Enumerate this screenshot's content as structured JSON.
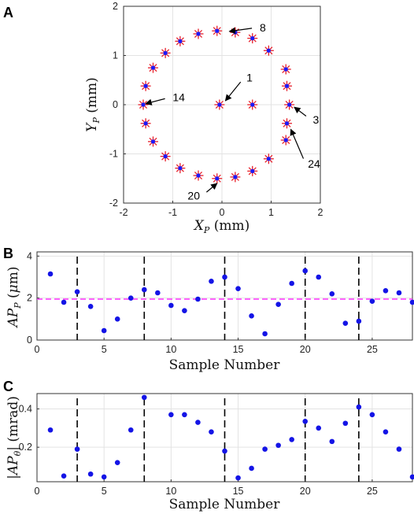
{
  "chart_data": [
    {
      "panel": "A",
      "type": "scatter",
      "xlabel": "X_P (mm)",
      "ylabel": "Y_P (mm)",
      "xlim": [
        -2,
        2
      ],
      "ylim": [
        -2,
        2
      ],
      "xticks": [
        "-2",
        "-1",
        "0",
        "1",
        "2"
      ],
      "yticks": [
        "-2",
        "-1",
        "0",
        "1",
        "2"
      ],
      "grid": true,
      "marker_red": "#e8202a",
      "marker_blue": "#1a1aff",
      "points": [
        {
          "x": -0.05,
          "y": 0
        },
        {
          "x": 0.62,
          "y": 0
        },
        {
          "x": 1.37,
          "y": 0
        },
        {
          "x": 1.3,
          "y": 0.72
        },
        {
          "x": 0.95,
          "y": 1.1
        },
        {
          "x": 0.62,
          "y": 1.35
        },
        {
          "x": 0.27,
          "y": 1.47
        },
        {
          "x": -0.1,
          "y": 1.5
        },
        {
          "x": -0.48,
          "y": 1.44
        },
        {
          "x": -0.85,
          "y": 1.29
        },
        {
          "x": -1.15,
          "y": 1.05
        },
        {
          "x": -1.4,
          "y": 0.75
        },
        {
          "x": -1.55,
          "y": 0.38
        },
        {
          "x": -1.6,
          "y": 0
        },
        {
          "x": -1.55,
          "y": -0.38
        },
        {
          "x": -1.4,
          "y": -0.75
        },
        {
          "x": -1.15,
          "y": -1.05
        },
        {
          "x": -0.85,
          "y": -1.29
        },
        {
          "x": -0.48,
          "y": -1.44
        },
        {
          "x": -0.1,
          "y": -1.5
        },
        {
          "x": 0.27,
          "y": -1.47
        },
        {
          "x": 0.62,
          "y": -1.35
        },
        {
          "x": 0.95,
          "y": -1.1
        },
        {
          "x": 1.3,
          "y": -0.72
        },
        {
          "x": 1.32,
          "y": 0.38
        },
        {
          "x": 1.32,
          "y": -0.38
        }
      ],
      "annotations": [
        {
          "text": "1",
          "x": 0.45,
          "y": 0.55,
          "tx": 0.07,
          "ty": 0.08
        },
        {
          "text": "8",
          "x": 0.72,
          "y": 1.57,
          "tx": 0.15,
          "ty": 1.49
        },
        {
          "text": "14",
          "x": -1.05,
          "y": 0.15,
          "tx": -1.55,
          "ty": 0.02
        },
        {
          "text": "3",
          "x": 1.8,
          "y": -0.3,
          "tx": 1.47,
          "ty": -0.05
        },
        {
          "text": "24",
          "x": 1.7,
          "y": -1.2,
          "tx": 1.4,
          "ty": -0.5
        },
        {
          "text": "20",
          "x": -0.4,
          "y": -1.85,
          "tx": -0.1,
          "ty": -1.6
        }
      ]
    },
    {
      "panel": "B",
      "type": "scatter",
      "xlabel": "Sample Number",
      "ylabel": "AP_P (μm)",
      "xlim": [
        0,
        28
      ],
      "ylim": [
        0,
        4.2
      ],
      "xticks": [
        "0",
        "5",
        "10",
        "15",
        "20",
        "25"
      ],
      "yticks": [
        "0",
        "2",
        "4"
      ],
      "grid": true,
      "x": [
        1,
        2,
        3,
        4,
        5,
        6,
        7,
        8,
        9,
        10,
        11,
        12,
        13,
        14,
        15,
        16,
        17,
        18,
        19,
        20,
        21,
        22,
        23,
        24,
        25,
        26,
        27,
        28
      ],
      "y": [
        3.15,
        1.8,
        2.3,
        1.6,
        0.45,
        1.0,
        2.0,
        2.4,
        2.25,
        1.65,
        1.4,
        1.95,
        2.8,
        3.0,
        2.45,
        1.15,
        0.3,
        1.7,
        2.7,
        3.3,
        3.0,
        2.2,
        0.8,
        0.9,
        1.85,
        2.35,
        2.25,
        1.8
      ],
      "mean_line": 1.95,
      "mean_line_color": "#ff33ff",
      "dashed_lines_x": [
        3,
        8,
        14,
        20,
        24
      ],
      "point_color": "#1414e6"
    },
    {
      "panel": "C",
      "type": "scatter",
      "xlabel": "Sample Number",
      "ylabel": "|AP_θ| (mrad)",
      "xlim": [
        0,
        28
      ],
      "ylim": [
        0.02,
        0.48
      ],
      "xticks": [
        "0",
        "5",
        "10",
        "15",
        "20",
        "25"
      ],
      "yticks": [
        "0.2",
        "0.4"
      ],
      "grid": true,
      "x": [
        1,
        2,
        3,
        4,
        5,
        6,
        7,
        8,
        9,
        10,
        11,
        12,
        13,
        14,
        15,
        16,
        17,
        18,
        19,
        20,
        21,
        22,
        23,
        24,
        25,
        26,
        27,
        28
      ],
      "y": [
        0.29,
        0.05,
        0.19,
        0.06,
        0.045,
        0.12,
        0.29,
        0.46,
        null,
        0.37,
        0.37,
        0.33,
        0.28,
        0.18,
        0.04,
        0.09,
        0.19,
        0.21,
        0.24,
        0.335,
        0.3,
        0.23,
        0.325,
        0.41,
        0.37,
        0.28,
        0.19,
        0.045
      ],
      "dashed_lines_x": [
        3,
        8,
        14,
        20,
        24
      ],
      "point_color": "#1414e6"
    }
  ],
  "labels": {
    "panelA": "A",
    "panelB": "B",
    "panelC": "C"
  }
}
